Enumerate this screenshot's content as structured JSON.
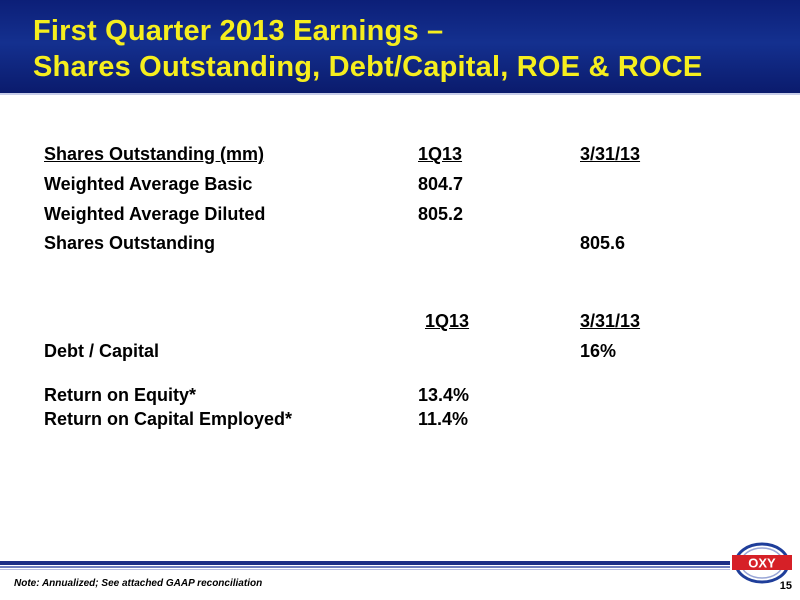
{
  "slide": {
    "title_line1": "First Quarter 2013 Earnings –",
    "title_line2": "Shares Outstanding, Debt/Capital, ROE & ROCE",
    "page_number": "15",
    "note": "Note: Annualized; See attached GAAP reconciliation",
    "logo_text": "OXY"
  },
  "shares": {
    "header": {
      "label": "Shares Outstanding (mm)",
      "col1": "1Q13",
      "col2": "3/31/13"
    },
    "rows": [
      {
        "label": "Weighted Average Basic",
        "col1": "804.7",
        "col2": ""
      },
      {
        "label": "Weighted Average Diluted",
        "col1": "805.2",
        "col2": ""
      },
      {
        "label": "Shares Outstanding",
        "col1": "",
        "col2": "805.6"
      }
    ]
  },
  "ratios": {
    "header": {
      "col1": "1Q13",
      "col2": "3/31/13"
    },
    "debt_capital": {
      "label": "Debt / Capital",
      "col2": "16%"
    },
    "roe": {
      "label": "Return on Equity*",
      "col1": "13.4%"
    },
    "roce": {
      "label": "Return on Capital Employed*",
      "col1": "11.4%"
    }
  },
  "colors": {
    "header_bg": "#14308f",
    "title_text": "#f6ee1e",
    "logo_red": "#d62027",
    "logo_blue": "#1f3e9a"
  }
}
